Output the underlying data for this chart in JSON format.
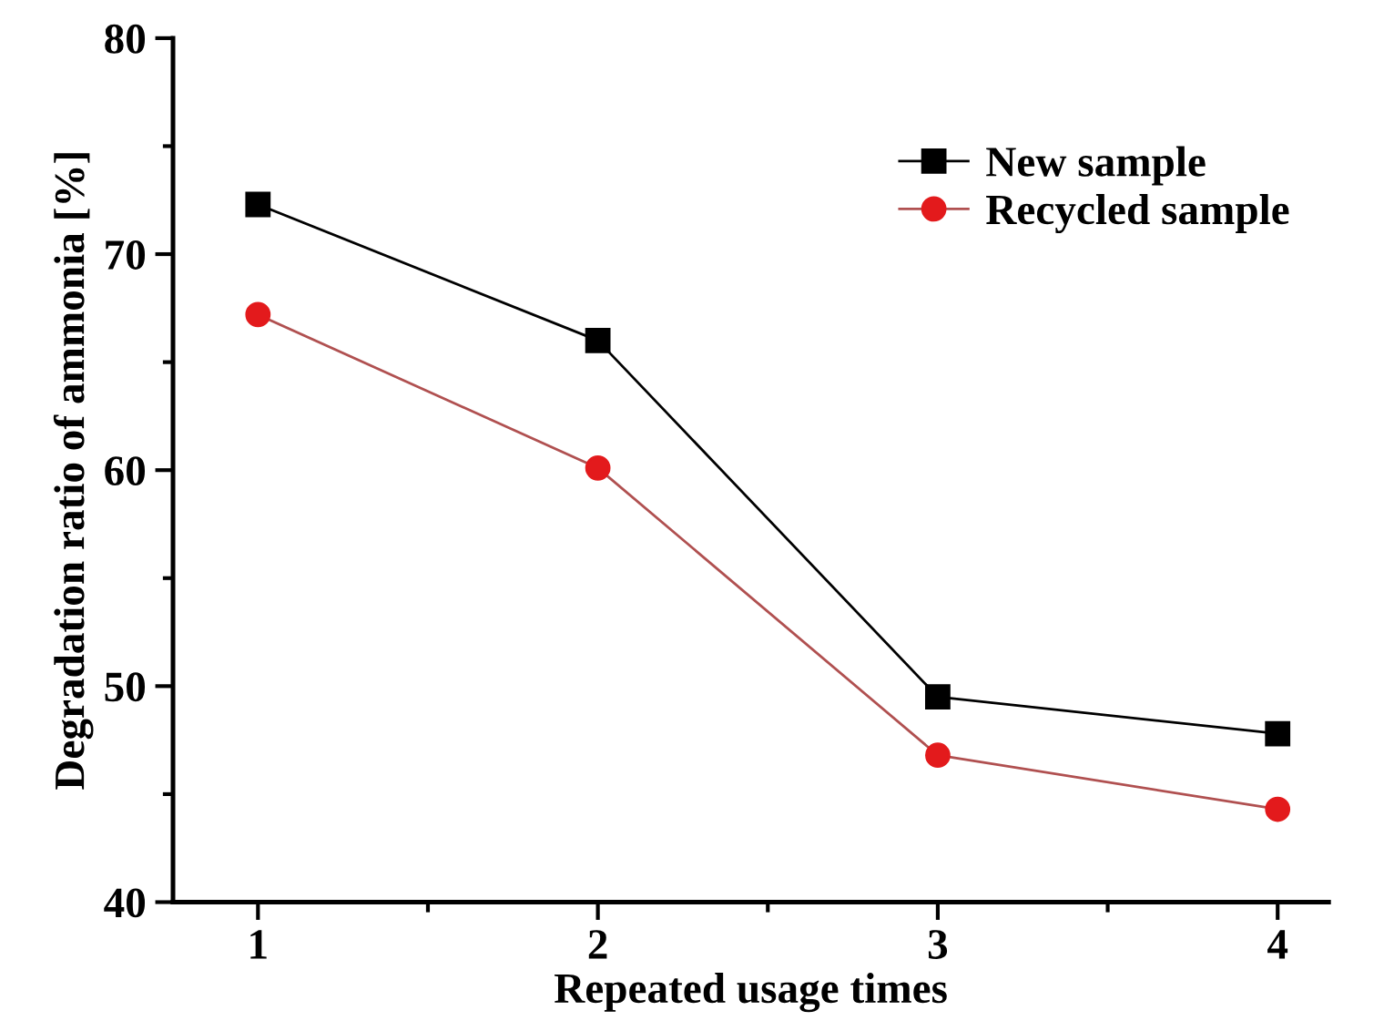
{
  "chart_data": {
    "type": "line",
    "xlabel": "Repeated usage times",
    "ylabel": "Degradation ratio of ammonia [%]",
    "x": [
      1,
      2,
      3,
      4
    ],
    "series": [
      {
        "name": "New sample",
        "color": "#000000",
        "marker": "square",
        "values": [
          72.3,
          66.0,
          49.5,
          47.8
        ]
      },
      {
        "name": "Recycled sample",
        "color": "#e31a1c",
        "marker": "circle",
        "values": [
          67.2,
          60.1,
          46.8,
          44.3
        ]
      }
    ],
    "xlim": [
      0.75,
      4.15
    ],
    "xticks": [
      1,
      2,
      3,
      4
    ],
    "ylim": [
      40,
      80
    ],
    "yticks": [
      40,
      50,
      60,
      70,
      80
    ],
    "grid": false,
    "legend": "top right",
    "line_style": "solid"
  }
}
